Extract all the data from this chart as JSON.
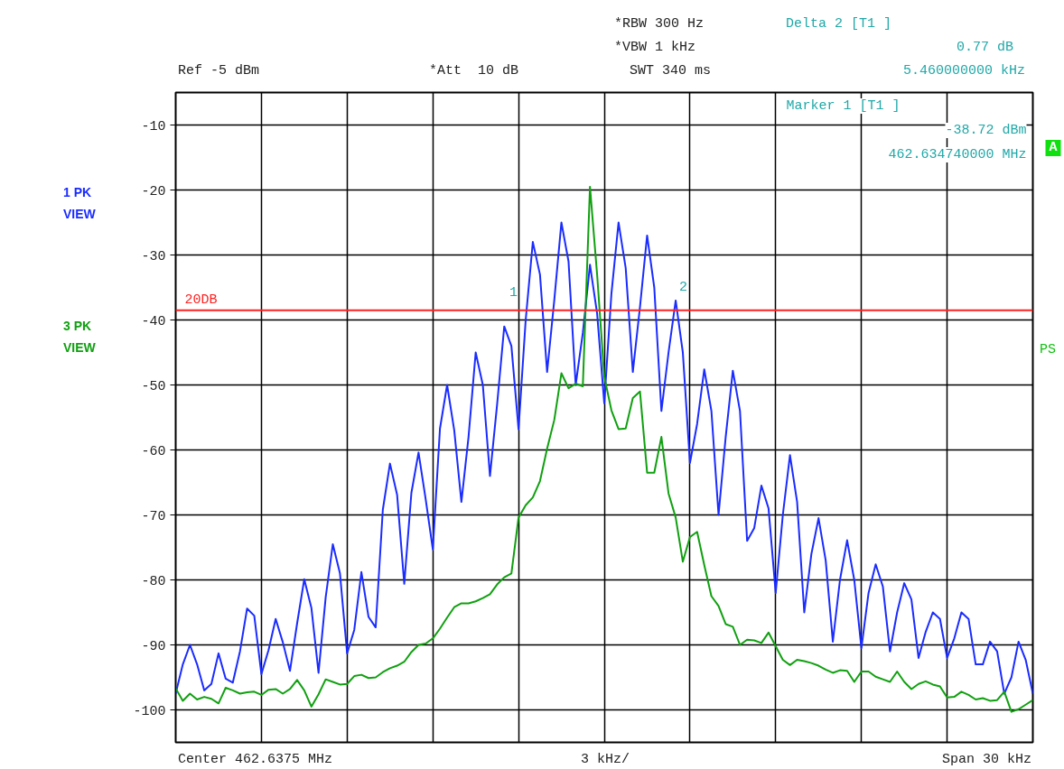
{
  "chart_data": {
    "type": "line",
    "categories": [
      null,
      null,
      null,
      null,
      null,
      null,
      null,
      null,
      null,
      null,
      null,
      null,
      null,
      null,
      null,
      null,
      null,
      null,
      null,
      null,
      null,
      null,
      null,
      null,
      null,
      null,
      null,
      null,
      null,
      null,
      null,
      null,
      null,
      null,
      null,
      null,
      null,
      null,
      null,
      null,
      null,
      null,
      null,
      null,
      null,
      null,
      null,
      null,
      null,
      null,
      null,
      null,
      null,
      null,
      null,
      null,
      null,
      null,
      null,
      null,
      null,
      null,
      null,
      null,
      null,
      null,
      null,
      null,
      null,
      null,
      null,
      null,
      null,
      null,
      null,
      null,
      null,
      null,
      null,
      null,
      null,
      null,
      null,
      null,
      null,
      null,
      null,
      null,
      null,
      null,
      null,
      null,
      null,
      null,
      null,
      null,
      null,
      null,
      null,
      null,
      null,
      null,
      null,
      null,
      null,
      null,
      null,
      null,
      null,
      null,
      null,
      null,
      null,
      null,
      null,
      null,
      null,
      null,
      null,
      null,
      null
    ],
    "ylim": [
      -105,
      -5
    ],
    "yticks": [
      -10,
      -20,
      -30,
      -40,
      -50,
      -60,
      -70,
      -80,
      -90,
      -100
    ],
    "grid": true,
    "marker": "none",
    "line_style": "solid",
    "tick_labels": "y",
    "series": [
      {
        "name": "1 PK VIEW",
        "color": "#1a2cff",
        "values": [
          -97.5,
          -93,
          -90,
          -93,
          -97,
          -96,
          -91.3,
          -95.2,
          -95.8,
          -91,
          -84.4,
          -85.5,
          -94.5,
          -90.8,
          -86,
          -89.6,
          -94,
          -86.7,
          -79.9,
          -84.3,
          -94.3,
          -82.7,
          -74.5,
          -79,
          -91.3,
          -87.7,
          -78.8,
          -85.7,
          -87.3,
          -69.2,
          -62.1,
          -66.9,
          -80.6,
          -66.6,
          -60.4,
          -67.6,
          -75.3,
          -56.7,
          -50,
          -57,
          -68,
          -58,
          -45,
          -50,
          -64,
          -53,
          -41,
          -44,
          -56.8,
          -40,
          -28,
          -33,
          -48,
          -37,
          -25,
          -31,
          -50,
          -42,
          -31.5,
          -39,
          -52.8,
          -36,
          -25,
          -32,
          -48,
          -38,
          -27,
          -35,
          -54,
          -45,
          -37,
          -45,
          -62,
          -56,
          -47.6,
          -54,
          -70,
          -58,
          -47.8,
          -54,
          -74,
          -72,
          -65.5,
          -69,
          -82,
          -70,
          -60.8,
          -68,
          -85,
          -76,
          -70.5,
          -77,
          -89.5,
          -80,
          -73.9,
          -80,
          -90.5,
          -82,
          -77.6,
          -81,
          -91,
          -85,
          -80.5,
          -83,
          -92,
          -88,
          -85,
          -86,
          -92,
          -89,
          -85,
          -86,
          -93,
          -93,
          -89.5,
          -91,
          -97.5,
          -95,
          -89.5,
          -92.3,
          -97.5
        ]
      },
      {
        "name": "3 PK VIEW",
        "color": "#10a010",
        "values": [
          -96.7,
          -98.6,
          -97.5,
          -98.4,
          -98,
          -98.3,
          -99,
          -96.6,
          -97,
          -97.5,
          -97.3,
          -97.2,
          -97.7,
          -96.9,
          -96.8,
          -97.5,
          -96.8,
          -95.4,
          -97,
          -99.5,
          -97.6,
          -95.3,
          -95.7,
          -96.1,
          -96,
          -94.8,
          -94.6,
          -95.1,
          -95,
          -94.2,
          -93.6,
          -93.2,
          -92.6,
          -91.1,
          -90,
          -89.8,
          -89,
          -87.5,
          -85.8,
          -84.2,
          -83.6,
          -83.6,
          -83.3,
          -82.8,
          -82.2,
          -80.7,
          -79.6,
          -79,
          -70.4,
          -68.5,
          -67.3,
          -64.8,
          -59.8,
          -55.4,
          -48.2,
          -50.5,
          -49.8,
          -50.2,
          -19.5,
          -33,
          -48.7,
          -53.9,
          -56.8,
          -56.7,
          -52,
          -51,
          -63.5,
          -63.5,
          -58,
          -66.7,
          -70.4,
          -77.2,
          -73.4,
          -72.6,
          -77.7,
          -82.5,
          -84,
          -86.8,
          -87.2,
          -90,
          -89.2,
          -89.3,
          -89.7,
          -88.1,
          -90.2,
          -92.3,
          -93.1,
          -92.3,
          -92.5,
          -92.8,
          -93.2,
          -93.8,
          -94.3,
          -93.9,
          -94,
          -95.7,
          -94.1,
          -94.1,
          -94.9,
          -95.3,
          -95.7,
          -94.1,
          -95.7,
          -96.8,
          -96,
          -95.6,
          -96.1,
          -96.4,
          -98.1,
          -98,
          -97.2,
          -97.7,
          -98.4,
          -98.2,
          -98.6,
          -98.5,
          -97.2,
          -100.3,
          -99.9,
          -99.2,
          -98.5
        ]
      }
    ],
    "ref_lines": [
      {
        "axis": "y",
        "value": -38.5,
        "label": "20DB",
        "color": "#ff2020"
      }
    ],
    "annotations": [
      "*RBW 300 Hz",
      "*VBW 1 kHz",
      "SWT 340 ms",
      "Ref -5 dBm",
      "*Att  10 dB",
      "Delta 2 [T1 ]",
      "0.77 dB",
      "5.460000000 kHz",
      "Marker 1 [T1 ]",
      "-38.72 dBm",
      "462.634740000 MHz",
      "A",
      "PS",
      "Center 462.6375 MHz",
      "3 kHz/",
      "Span 30 kHz",
      "1",
      "2"
    ]
  }
}
